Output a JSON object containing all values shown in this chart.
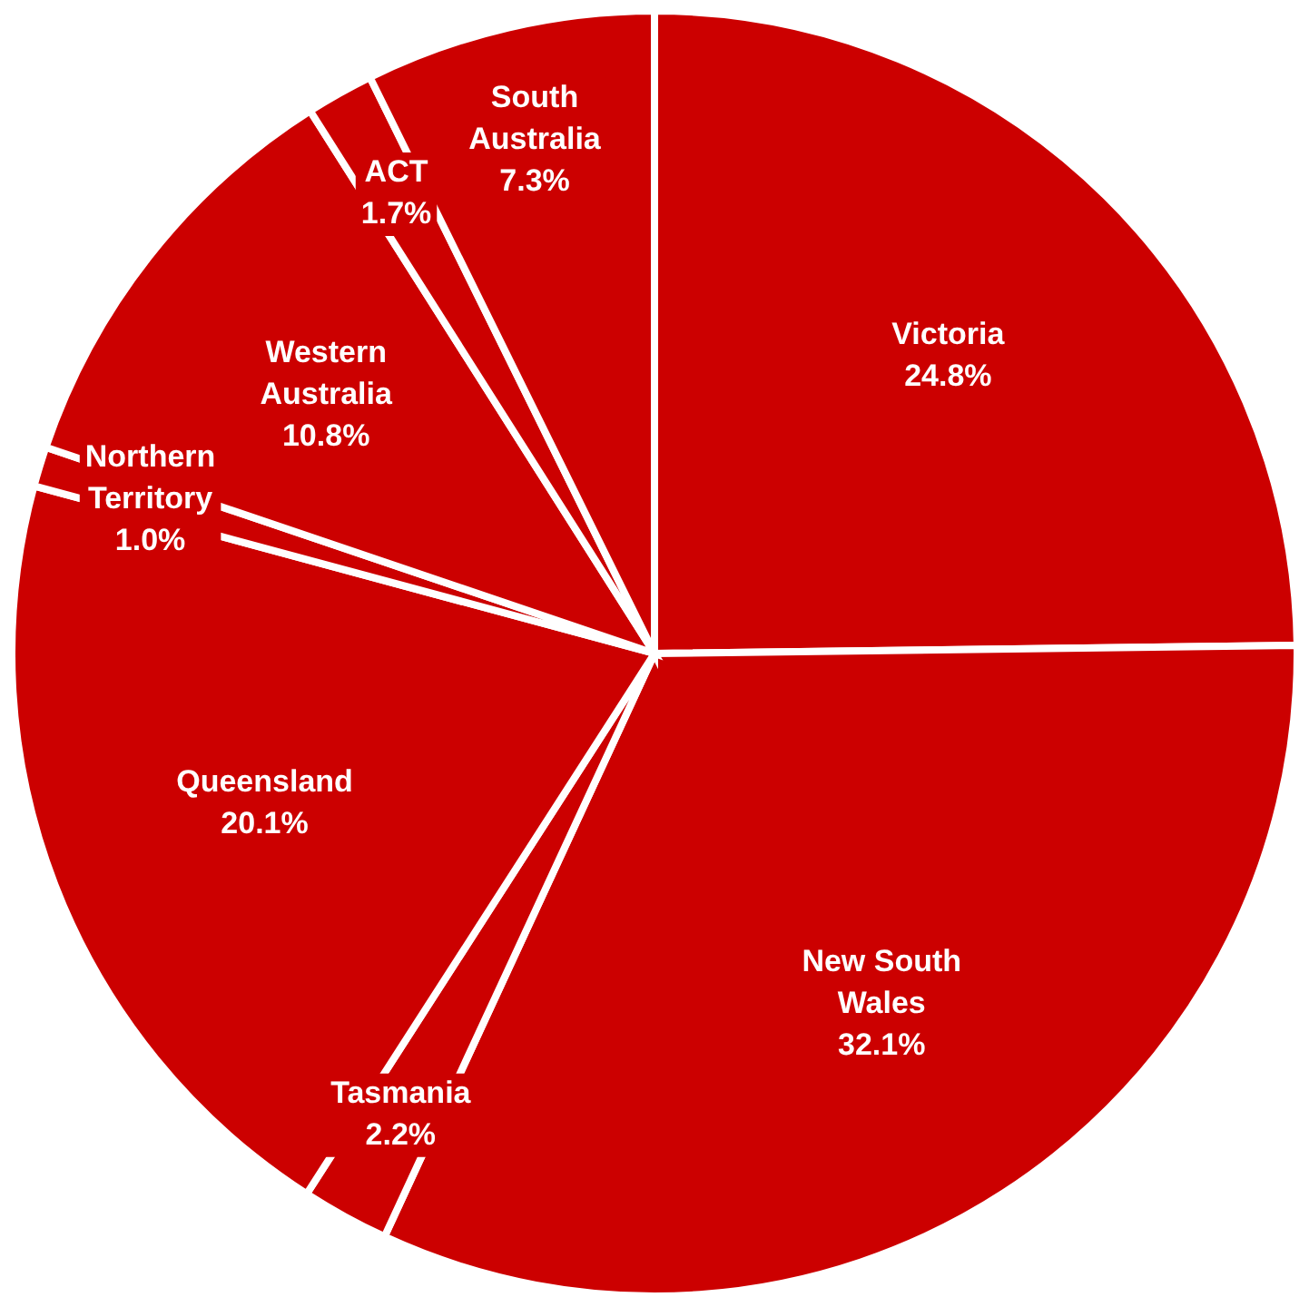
{
  "chart_data": {
    "type": "pie",
    "categories": [
      "Victoria",
      "New South Wales",
      "Tasmania",
      "Queensland",
      "Northern Territory",
      "Western Australia",
      "ACT",
      "South Australia"
    ],
    "values": [
      24.8,
      32.1,
      2.2,
      20.1,
      1.0,
      10.8,
      1.7,
      7.3
    ],
    "value_labels": [
      "24.8%",
      "32.1%",
      "2.2%",
      "20.1%",
      "1.0%",
      "10.8%",
      "1.7%",
      "7.3%"
    ],
    "colors": [
      "#cc0000",
      "#cc0000",
      "#cc0000",
      "#cc0000",
      "#cc0000",
      "#cc0000",
      "#cc0000",
      "#cc0000"
    ],
    "legend": false
  }
}
